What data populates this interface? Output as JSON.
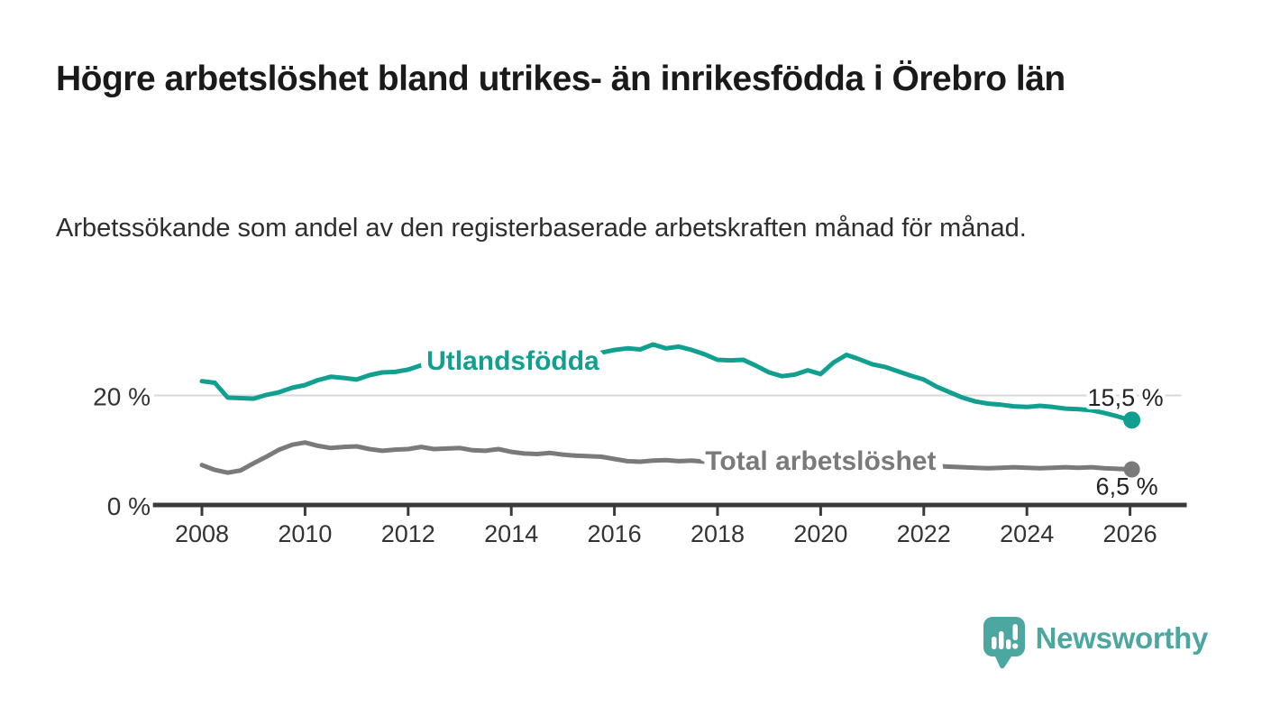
{
  "title": "Högre arbetslöshet bland utrikes- än inrikesfödda i Örebro län",
  "subtitle": "Arbetssökande som andel av den registerbaserade arbetskraften månad för månad.",
  "branding": {
    "name": "Newsworthy",
    "color": "#4ba7a0",
    "logo_icon": "speech-bubble-bar-chart-icon"
  },
  "chart_data": {
    "type": "line",
    "title": "Högre arbetslöshet bland utrikes- än inrikesfödda i Örebro län",
    "subtitle": "Arbetssökande som andel av den registerbaserade arbetskraften månad för månad.",
    "grid": "single horizontal gridline at 20 %",
    "x_axis": {
      "range": [
        2007.05,
        2027.1
      ],
      "tick_years": [
        2008,
        2010,
        2012,
        2014,
        2016,
        2018,
        2020,
        2022,
        2024,
        2026
      ],
      "tick_labels": [
        "2008",
        "2010",
        "2012",
        "2014",
        "2016",
        "2018",
        "2020",
        "2022",
        "2024",
        "2026"
      ]
    },
    "y_axis": {
      "range": [
        0,
        33
      ],
      "unit": "%",
      "grid_values": [
        20
      ],
      "ticks": [
        {
          "value": 0,
          "label": "0 %"
        },
        {
          "value": 20,
          "label": "20 %"
        }
      ]
    },
    "series": [
      {
        "name": "Utlandsfödda",
        "color": "#119f90",
        "start_year": 2008.0,
        "step_years": 0.25,
        "end_label": "15,5 %",
        "end_value": 15.5,
        "values": [
          22.6,
          22.3,
          19.6,
          19.5,
          19.4,
          20.1,
          20.6,
          21.4,
          21.9,
          22.8,
          23.4,
          23.2,
          22.9,
          23.7,
          24.2,
          24.3,
          24.7,
          25.5,
          24.8,
          25.0,
          25.3,
          26.0,
          24.6,
          25.0,
          25.3,
          25.9,
          26.3,
          26.7,
          27.1,
          27.4,
          27.2,
          27.8,
          28.3,
          28.6,
          28.4,
          29.3,
          28.6,
          28.9,
          28.3,
          27.5,
          26.5,
          26.4,
          26.5,
          25.4,
          24.2,
          23.5,
          23.8,
          24.6,
          23.9,
          26.0,
          27.4,
          26.6,
          25.7,
          25.2,
          24.4,
          23.6,
          22.9,
          21.6,
          20.6,
          19.6,
          18.9,
          18.5,
          18.3,
          18.0,
          17.9,
          18.1,
          17.9,
          17.6,
          17.5,
          17.3,
          16.8,
          16.2,
          15.5
        ]
      },
      {
        "name": "Total arbetslöshet",
        "color": "#7a7a7a",
        "start_year": 2008.0,
        "step_years": 0.25,
        "end_label": "6,5 %",
        "end_value": 6.5,
        "values": [
          7.3,
          6.4,
          5.9,
          6.3,
          7.6,
          8.8,
          10.1,
          11.0,
          11.4,
          10.8,
          10.4,
          10.6,
          10.7,
          10.2,
          9.9,
          10.1,
          10.2,
          10.6,
          10.2,
          10.3,
          10.4,
          10.0,
          9.9,
          10.2,
          9.7,
          9.4,
          9.3,
          9.5,
          9.2,
          9.0,
          8.9,
          8.8,
          8.4,
          8.0,
          7.9,
          8.1,
          8.2,
          8.0,
          8.1,
          7.9,
          7.7,
          7.5,
          7.6,
          7.4,
          7.3,
          7.2,
          7.4,
          7.6,
          7.8,
          8.9,
          9.4,
          9.0,
          8.7,
          8.4,
          8.0,
          7.7,
          7.4,
          7.1,
          7.0,
          6.9,
          6.8,
          6.7,
          6.8,
          6.9,
          6.8,
          6.7,
          6.8,
          6.9,
          6.8,
          6.9,
          6.7,
          6.6,
          6.5
        ]
      }
    ],
    "series_labels": [
      {
        "text": "Utlandsfödda",
        "year": 2014.03,
        "value": 26.5,
        "color": "#119f90"
      },
      {
        "text": "Total arbetslöshet",
        "year": 2020.0,
        "value": 8.2,
        "color": "#7a7a7a"
      }
    ],
    "legend_position": "inline labels on lines",
    "colors": {
      "accent_teal": "#119f90",
      "neutral_gray": "#7a7a7a",
      "gridline": "#d8d8d8",
      "axis": "#3a3a3a"
    }
  }
}
